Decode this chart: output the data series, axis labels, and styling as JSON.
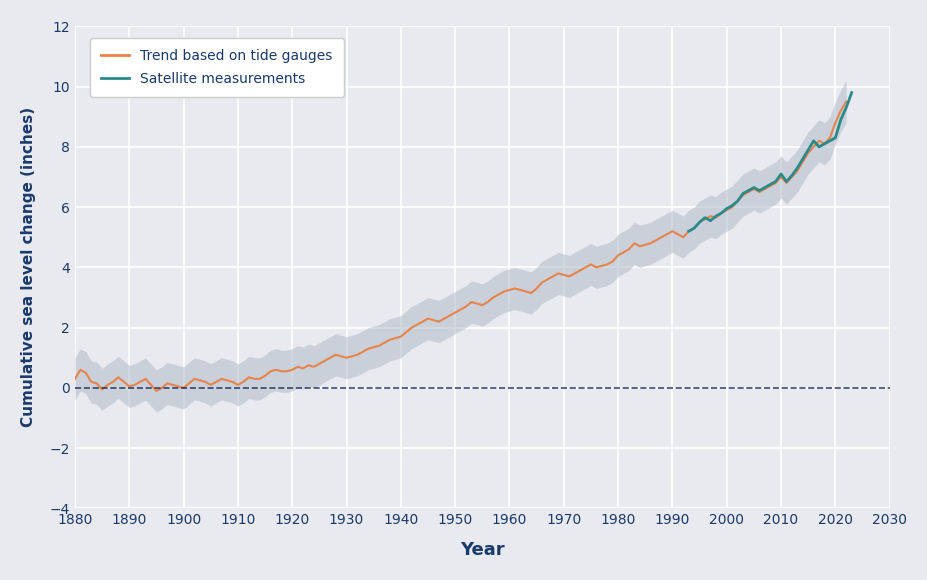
{
  "xlabel": "Year",
  "ylabel": "Cumulative sea level change (inches)",
  "xlim": [
    1880,
    2030
  ],
  "ylim": [
    -4,
    12
  ],
  "xticks": [
    1880,
    1890,
    1900,
    1910,
    1920,
    1930,
    1940,
    1950,
    1960,
    1970,
    1980,
    1990,
    2000,
    2010,
    2020,
    2030
  ],
  "yticks": [
    -4,
    -2,
    0,
    2,
    4,
    6,
    8,
    10,
    12
  ],
  "background_color": "#e8eaf0",
  "plot_bg_color": "#e8eaf0",
  "grid_color": "#ffffff",
  "tide_color": "#e8834a",
  "tide_band_color": "#b0bcc8",
  "satellite_color": "#2a8a8a",
  "zero_line_color": "#1a2a5a",
  "ylabel_color": "#1a3a6a",
  "xlabel_color": "#1a3a6a",
  "tick_color": "#1a3a6a",
  "legend_label_tide": "Trend based on tide gauges",
  "legend_label_satellite": "Satellite measurements",
  "tide_gauge_years": [
    1880,
    1881,
    1882,
    1883,
    1884,
    1885,
    1886,
    1887,
    1888,
    1889,
    1890,
    1891,
    1892,
    1893,
    1894,
    1895,
    1896,
    1897,
    1898,
    1899,
    1900,
    1901,
    1902,
    1903,
    1904,
    1905,
    1906,
    1907,
    1908,
    1909,
    1910,
    1911,
    1912,
    1913,
    1914,
    1915,
    1916,
    1917,
    1918,
    1919,
    1920,
    1921,
    1922,
    1923,
    1924,
    1925,
    1926,
    1927,
    1928,
    1929,
    1930,
    1931,
    1932,
    1933,
    1934,
    1935,
    1936,
    1937,
    1938,
    1939,
    1940,
    1941,
    1942,
    1943,
    1944,
    1945,
    1946,
    1947,
    1948,
    1949,
    1950,
    1951,
    1952,
    1953,
    1954,
    1955,
    1956,
    1957,
    1958,
    1959,
    1960,
    1961,
    1962,
    1963,
    1964,
    1965,
    1966,
    1967,
    1968,
    1969,
    1970,
    1971,
    1972,
    1973,
    1974,
    1975,
    1976,
    1977,
    1978,
    1979,
    1980,
    1981,
    1982,
    1983,
    1984,
    1985,
    1986,
    1987,
    1988,
    1989,
    1990,
    1991,
    1992,
    1993,
    1994,
    1995,
    1996,
    1997,
    1998,
    1999,
    2000,
    2001,
    2002,
    2003,
    2004,
    2005,
    2006,
    2007,
    2008,
    2009,
    2010,
    2011,
    2012,
    2013,
    2014,
    2015,
    2016,
    2017,
    2018,
    2019,
    2020,
    2021,
    2022
  ],
  "tide_gauge_values": [
    0.3,
    0.6,
    0.5,
    0.2,
    0.15,
    -0.05,
    0.1,
    0.2,
    0.35,
    0.2,
    0.05,
    0.1,
    0.2,
    0.3,
    0.1,
    -0.1,
    0.0,
    0.15,
    0.1,
    0.05,
    0.0,
    0.15,
    0.3,
    0.25,
    0.2,
    0.1,
    0.2,
    0.3,
    0.25,
    0.2,
    0.1,
    0.2,
    0.35,
    0.3,
    0.3,
    0.4,
    0.55,
    0.6,
    0.55,
    0.55,
    0.6,
    0.7,
    0.65,
    0.75,
    0.7,
    0.8,
    0.9,
    1.0,
    1.1,
    1.05,
    1.0,
    1.05,
    1.1,
    1.2,
    1.3,
    1.35,
    1.4,
    1.5,
    1.6,
    1.65,
    1.7,
    1.85,
    2.0,
    2.1,
    2.2,
    2.3,
    2.25,
    2.2,
    2.3,
    2.4,
    2.5,
    2.6,
    2.7,
    2.85,
    2.8,
    2.75,
    2.85,
    3.0,
    3.1,
    3.2,
    3.25,
    3.3,
    3.25,
    3.2,
    3.15,
    3.3,
    3.5,
    3.6,
    3.7,
    3.8,
    3.75,
    3.7,
    3.8,
    3.9,
    4.0,
    4.1,
    4.0,
    4.05,
    4.1,
    4.2,
    4.4,
    4.5,
    4.6,
    4.8,
    4.7,
    4.75,
    4.8,
    4.9,
    5.0,
    5.1,
    5.2,
    5.1,
    5.0,
    5.2,
    5.3,
    5.5,
    5.6,
    5.7,
    5.65,
    5.8,
    5.9,
    6.0,
    6.2,
    6.4,
    6.5,
    6.6,
    6.5,
    6.6,
    6.7,
    6.8,
    7.0,
    6.8,
    7.0,
    7.2,
    7.5,
    7.8,
    8.0,
    8.2,
    8.1,
    8.3,
    8.8,
    9.2,
    9.5
  ],
  "tide_gauge_upper": [
    1.0,
    1.3,
    1.2,
    0.9,
    0.85,
    0.65,
    0.8,
    0.9,
    1.05,
    0.9,
    0.75,
    0.8,
    0.9,
    1.0,
    0.8,
    0.6,
    0.7,
    0.85,
    0.8,
    0.75,
    0.7,
    0.85,
    1.0,
    0.95,
    0.9,
    0.8,
    0.9,
    1.0,
    0.95,
    0.9,
    0.8,
    0.9,
    1.05,
    1.0,
    1.0,
    1.1,
    1.25,
    1.3,
    1.25,
    1.25,
    1.3,
    1.4,
    1.35,
    1.45,
    1.4,
    1.5,
    1.6,
    1.7,
    1.8,
    1.75,
    1.7,
    1.75,
    1.8,
    1.9,
    2.0,
    2.05,
    2.1,
    2.2,
    2.3,
    2.35,
    2.4,
    2.55,
    2.7,
    2.8,
    2.9,
    3.0,
    2.95,
    2.9,
    3.0,
    3.1,
    3.2,
    3.3,
    3.4,
    3.55,
    3.5,
    3.45,
    3.55,
    3.7,
    3.8,
    3.9,
    3.95,
    4.0,
    3.95,
    3.9,
    3.85,
    4.0,
    4.2,
    4.3,
    4.4,
    4.5,
    4.45,
    4.4,
    4.5,
    4.6,
    4.7,
    4.8,
    4.7,
    4.75,
    4.8,
    4.9,
    5.1,
    5.2,
    5.3,
    5.5,
    5.4,
    5.45,
    5.5,
    5.6,
    5.7,
    5.8,
    5.9,
    5.8,
    5.7,
    5.9,
    6.0,
    6.2,
    6.3,
    6.4,
    6.35,
    6.5,
    6.6,
    6.7,
    6.9,
    7.1,
    7.2,
    7.3,
    7.2,
    7.3,
    7.4,
    7.5,
    7.7,
    7.5,
    7.7,
    7.9,
    8.2,
    8.5,
    8.7,
    8.9,
    8.8,
    9.0,
    9.5,
    9.9,
    10.2
  ],
  "tide_gauge_lower": [
    -0.4,
    -0.1,
    -0.2,
    -0.5,
    -0.55,
    -0.75,
    -0.6,
    -0.5,
    -0.35,
    -0.5,
    -0.65,
    -0.6,
    -0.5,
    -0.4,
    -0.6,
    -0.8,
    -0.7,
    -0.55,
    -0.6,
    -0.65,
    -0.7,
    -0.55,
    -0.4,
    -0.45,
    -0.5,
    -0.6,
    -0.5,
    -0.4,
    -0.45,
    -0.5,
    -0.6,
    -0.5,
    -0.35,
    -0.4,
    -0.4,
    -0.3,
    -0.15,
    -0.1,
    -0.15,
    -0.15,
    -0.1,
    0.0,
    -0.05,
    0.05,
    0.0,
    0.1,
    0.2,
    0.3,
    0.4,
    0.35,
    0.3,
    0.35,
    0.4,
    0.5,
    0.6,
    0.65,
    0.7,
    0.8,
    0.9,
    0.95,
    1.0,
    1.15,
    1.3,
    1.4,
    1.5,
    1.6,
    1.55,
    1.5,
    1.6,
    1.7,
    1.8,
    1.9,
    2.0,
    2.15,
    2.1,
    2.05,
    2.15,
    2.3,
    2.4,
    2.5,
    2.55,
    2.6,
    2.55,
    2.5,
    2.45,
    2.6,
    2.8,
    2.9,
    3.0,
    3.1,
    3.05,
    3.0,
    3.1,
    3.2,
    3.3,
    3.4,
    3.3,
    3.35,
    3.4,
    3.5,
    3.7,
    3.8,
    3.9,
    4.1,
    4.0,
    4.05,
    4.1,
    4.2,
    4.3,
    4.4,
    4.5,
    4.4,
    4.3,
    4.5,
    4.6,
    4.8,
    4.9,
    5.0,
    4.95,
    5.1,
    5.2,
    5.3,
    5.5,
    5.7,
    5.8,
    5.9,
    5.8,
    5.9,
    6.0,
    6.1,
    6.3,
    6.1,
    6.3,
    6.5,
    6.8,
    7.1,
    7.3,
    7.5,
    7.4,
    7.6,
    8.1,
    8.5,
    8.8
  ],
  "satellite_years": [
    1993,
    1994,
    1995,
    1996,
    1997,
    1998,
    1999,
    2000,
    2001,
    2002,
    2003,
    2004,
    2005,
    2006,
    2007,
    2008,
    2009,
    2010,
    2011,
    2012,
    2013,
    2014,
    2015,
    2016,
    2017,
    2018,
    2019,
    2020,
    2021,
    2022,
    2023
  ],
  "satellite_values": [
    5.2,
    5.3,
    5.5,
    5.65,
    5.55,
    5.7,
    5.8,
    5.95,
    6.05,
    6.2,
    6.45,
    6.55,
    6.65,
    6.55,
    6.65,
    6.75,
    6.85,
    7.1,
    6.85,
    7.05,
    7.3,
    7.6,
    7.9,
    8.2,
    8.0,
    8.1,
    8.2,
    8.3,
    8.9,
    9.3,
    9.8
  ]
}
